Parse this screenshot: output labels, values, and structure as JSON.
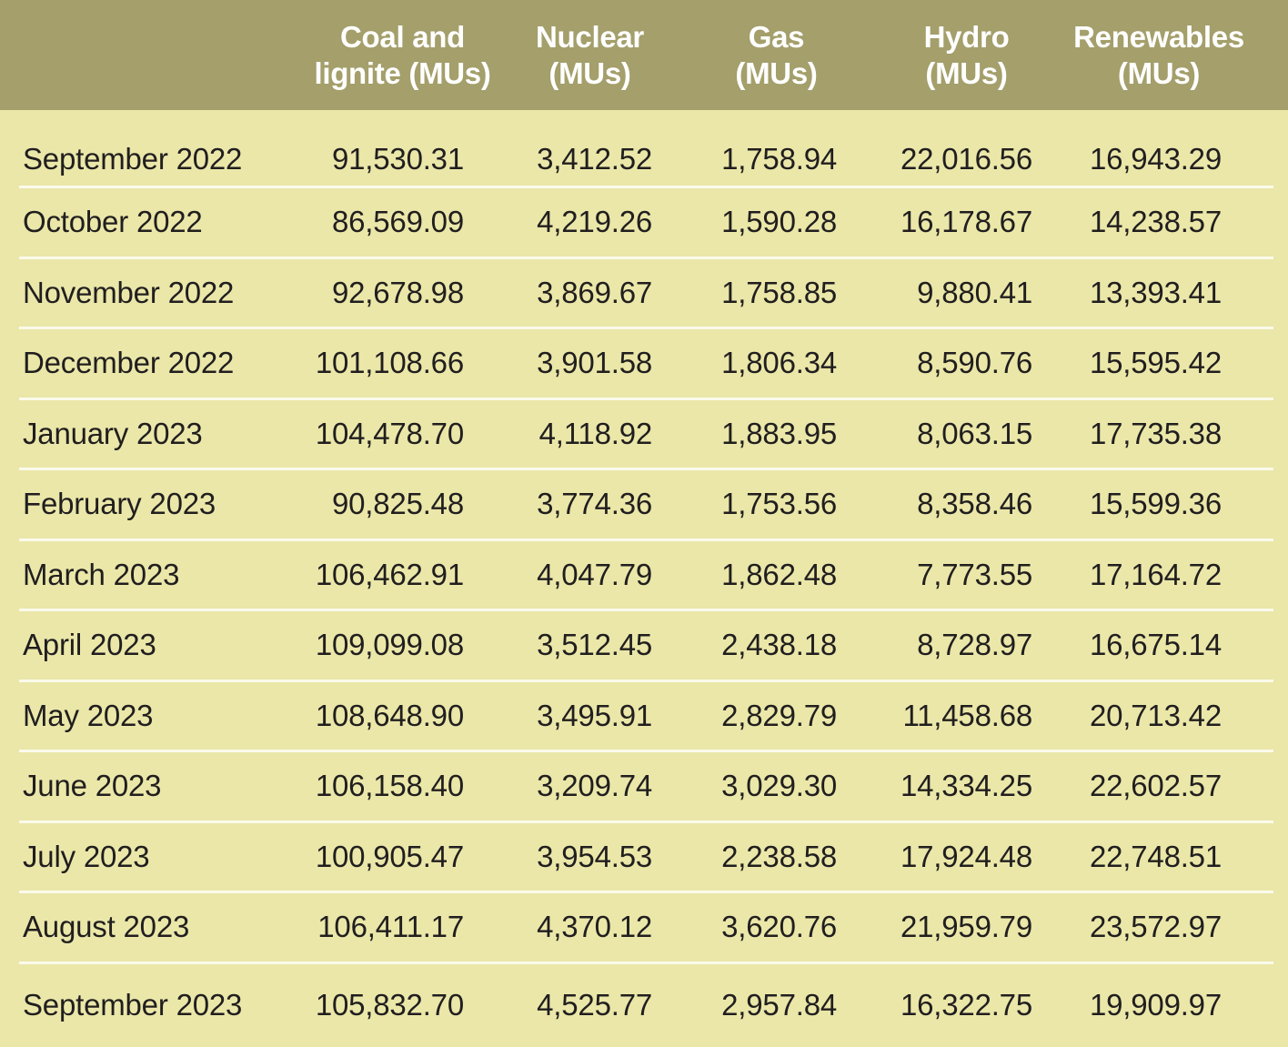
{
  "header": {
    "month_label": "",
    "columns": [
      {
        "line1": "Coal and",
        "line2": "lignite (MUs)"
      },
      {
        "line1": "Nuclear",
        "line2": "(MUs)"
      },
      {
        "line1": "Gas",
        "line2": "(MUs)"
      },
      {
        "line1": "Hydro",
        "line2": "(MUs)"
      },
      {
        "line1": "Renewables",
        "line2": "(MUs)"
      }
    ]
  },
  "rows": [
    {
      "month": "September 2022",
      "values": [
        "91,530.31",
        "3,412.52",
        "1,758.94",
        "22,016.56",
        "16,943.29"
      ]
    },
    {
      "month": "October 2022",
      "values": [
        "86,569.09",
        "4,219.26",
        "1,590.28",
        "16,178.67",
        "14,238.57"
      ]
    },
    {
      "month": "November 2022",
      "values": [
        "92,678.98",
        "3,869.67",
        "1,758.85",
        "9,880.41",
        "13,393.41"
      ]
    },
    {
      "month": "December 2022",
      "values": [
        "101,108.66",
        "3,901.58",
        "1,806.34",
        "8,590.76",
        "15,595.42"
      ]
    },
    {
      "month": "January 2023",
      "values": [
        "104,478.70",
        "4,118.92",
        "1,883.95",
        "8,063.15",
        "17,735.38"
      ]
    },
    {
      "month": "February 2023",
      "values": [
        "90,825.48",
        "3,774.36",
        "1,753.56",
        "8,358.46",
        "15,599.36"
      ]
    },
    {
      "month": "March 2023",
      "values": [
        "106,462.91",
        "4,047.79",
        "1,862.48",
        "7,773.55",
        "17,164.72"
      ]
    },
    {
      "month": "April 2023",
      "values": [
        "109,099.08",
        "3,512.45",
        "2,438.18",
        "8,728.97",
        "16,675.14"
      ]
    },
    {
      "month": "May 2023",
      "values": [
        "108,648.90",
        "3,495.91",
        "2,829.79",
        "11,458.68",
        "20,713.42"
      ]
    },
    {
      "month": "June 2023",
      "values": [
        "106,158.40",
        "3,209.74",
        "3,029.30",
        "14,334.25",
        "22,602.57"
      ]
    },
    {
      "month": "July 2023",
      "values": [
        "100,905.47",
        "3,954.53",
        "2,238.58",
        "17,924.48",
        "22,748.51"
      ]
    },
    {
      "month": "August 2023",
      "values": [
        "106,411.17",
        "4,370.12",
        "3,620.76",
        "21,959.79",
        "23,572.97"
      ]
    },
    {
      "month": "September 2023",
      "values": [
        "105,832.70",
        "4,525.77",
        "2,957.84",
        "16,322.75",
        "19,909.97"
      ]
    }
  ],
  "colors": {
    "header_bg": "#a49f6b",
    "body_bg": "#eae7a9",
    "divider": "#fbfaec",
    "body_text": "#211e1f",
    "header_text": "#ffffff"
  },
  "chart_data": {
    "type": "table",
    "title": "",
    "categories": [
      "September 2022",
      "October 2022",
      "November 2022",
      "December 2022",
      "January 2023",
      "February 2023",
      "March 2023",
      "April 2023",
      "May 2023",
      "June 2023",
      "July 2023",
      "August 2023",
      "September 2023"
    ],
    "series": [
      {
        "name": "Coal and lignite (MUs)",
        "values": [
          91530.31,
          86569.09,
          92678.98,
          101108.66,
          104478.7,
          90825.48,
          106462.91,
          109099.08,
          108648.9,
          106158.4,
          100905.47,
          106411.17,
          105832.7
        ]
      },
      {
        "name": "Nuclear (MUs)",
        "values": [
          3412.52,
          4219.26,
          3869.67,
          3901.58,
          4118.92,
          3774.36,
          4047.79,
          3512.45,
          3495.91,
          3209.74,
          3954.53,
          4370.12,
          4525.77
        ]
      },
      {
        "name": "Gas (MUs)",
        "values": [
          1758.94,
          1590.28,
          1758.85,
          1806.34,
          1883.95,
          1753.56,
          1862.48,
          2438.18,
          2829.79,
          3029.3,
          2238.58,
          3620.76,
          2957.84
        ]
      },
      {
        "name": "Hydro (MUs)",
        "values": [
          22016.56,
          16178.67,
          9880.41,
          8590.76,
          8063.15,
          8358.46,
          7773.55,
          8728.97,
          11458.68,
          14334.25,
          17924.48,
          21959.79,
          16322.75
        ]
      },
      {
        "name": "Renewables (MUs)",
        "values": [
          16943.29,
          14238.57,
          13393.41,
          15595.42,
          17735.38,
          15599.36,
          17164.72,
          16675.14,
          20713.42,
          22602.57,
          22748.51,
          23572.97,
          19909.97
        ]
      }
    ]
  }
}
